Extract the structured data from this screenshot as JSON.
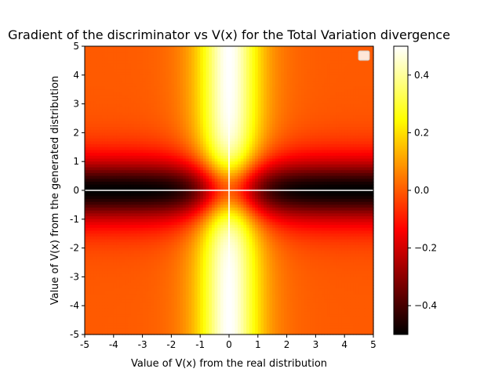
{
  "chart_data": {
    "type": "heatmap",
    "title": "Gradient of the discriminator vs V(x) for the Total Variation divergence",
    "xlabel": "Value of V(x) from the real distribution",
    "ylabel": "Value of V(x) from the generated distribution",
    "xlim": [
      -5,
      5
    ],
    "ylim": [
      -5,
      5
    ],
    "x_ticks": [
      "-5",
      "-4",
      "-3",
      "-2",
      "-1",
      "0",
      "1",
      "2",
      "3",
      "4",
      "5"
    ],
    "y_ticks": [
      "-5",
      "-4",
      "-3",
      "-2",
      "-1",
      "0",
      "1",
      "2",
      "3",
      "4",
      "5"
    ],
    "grid_resolution": 100,
    "colormap": "hot",
    "colorbar": {
      "vmin": -0.5,
      "vmax": 0.5,
      "ticks": [
        "−0.4",
        "−0.2",
        "0.0",
        "0.2",
        "0.4"
      ],
      "tick_values": [
        -0.4,
        -0.2,
        0.0,
        0.2,
        0.4
      ]
    },
    "function": "0.5*(1 - tanh(x)^2) - 0.5*(1 - tanh(y)^2)",
    "reference_lines": {
      "horizontal_y": 0,
      "vertical_x": 0,
      "color": "#ffffff"
    },
    "legend": {
      "position": "upper right",
      "entries": []
    }
  }
}
